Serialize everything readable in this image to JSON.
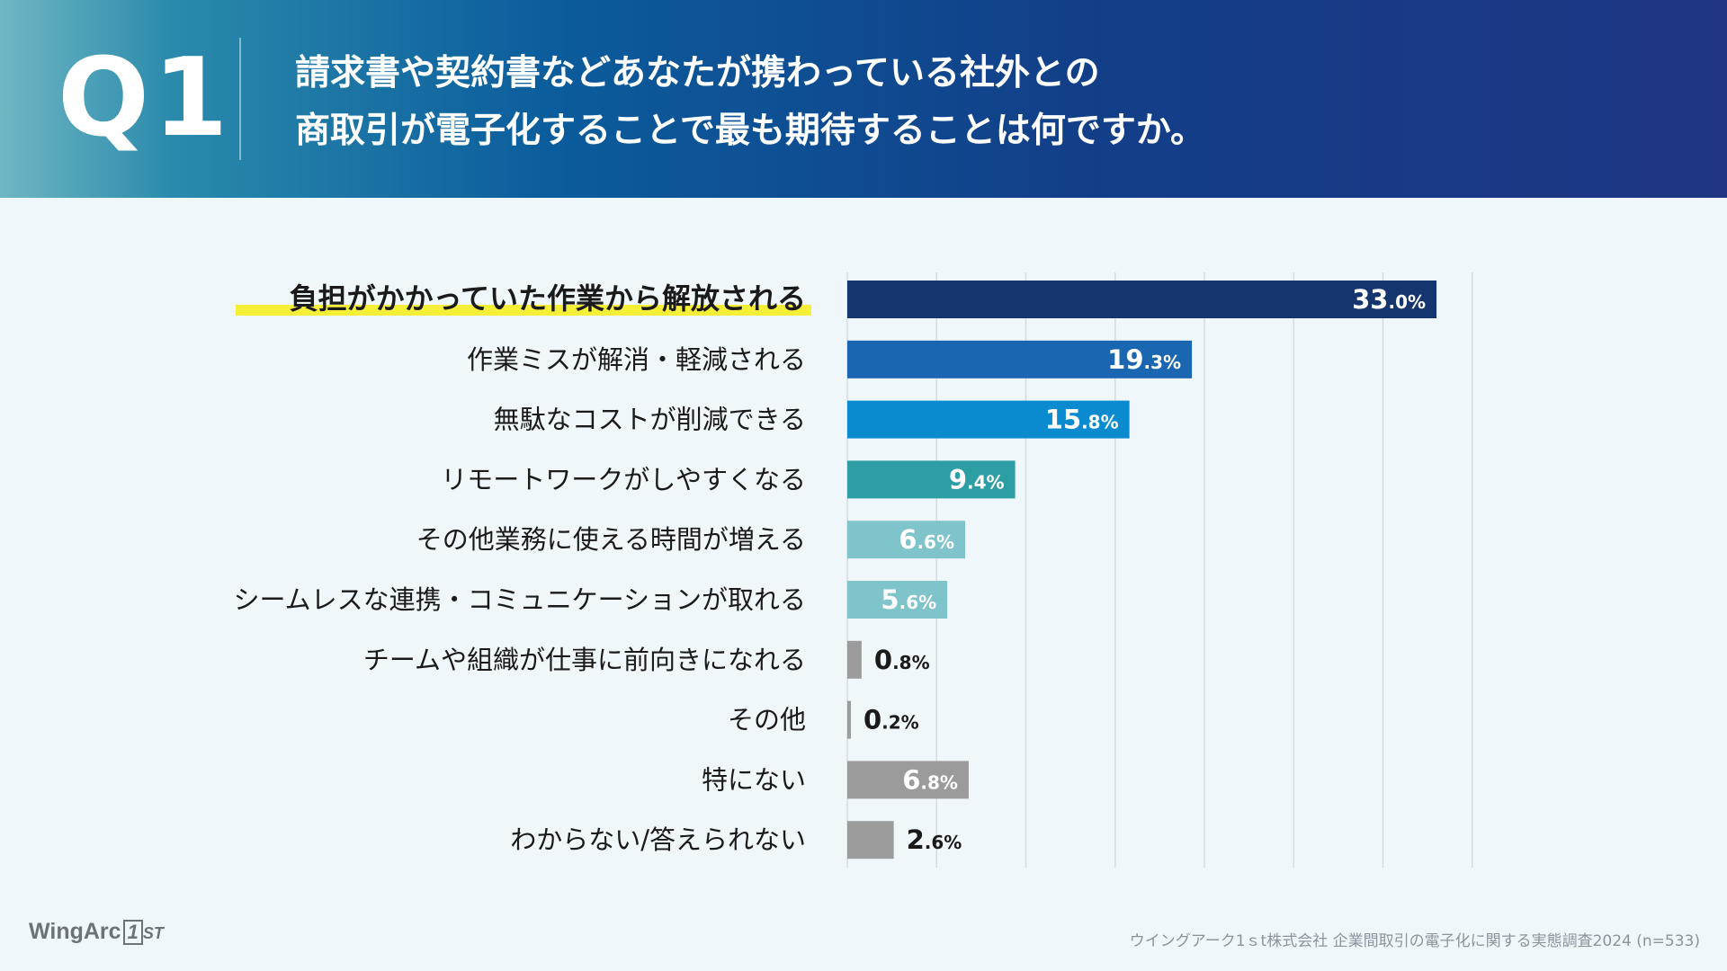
{
  "header": {
    "question_number": "Q1",
    "question_line1": "請求書や契約書などあなたが携わっている社外との",
    "question_line2": "商取引が電子化することで最も期待することは何ですか。"
  },
  "chart_data": {
    "type": "bar",
    "orientation": "horizontal",
    "categories": [
      "負担がかかっていた作業から解放される",
      "作業ミスが解消・軽減される",
      "無駄なコストが削減できる",
      "リモートワークがしやすくなる",
      "その他業務に使える時間が増える",
      "シームレスな連携・コミュニケーションが取れる",
      "チームや組織が仕事に前向きになれる",
      "その他",
      "特にない",
      "わからない/答えられない"
    ],
    "values": [
      33.0,
      19.3,
      15.8,
      9.4,
      6.6,
      5.6,
      0.8,
      0.2,
      6.8,
      2.6
    ],
    "value_labels_main": [
      "33",
      "19",
      "15",
      "9",
      "6",
      "5",
      "0",
      "0",
      "6",
      "2"
    ],
    "value_labels_decimal": [
      ".0%",
      ".3%",
      ".8%",
      ".4%",
      ".6%",
      ".6%",
      ".8%",
      ".2%",
      ".8%",
      ".6%"
    ],
    "colors": [
      "#15356f",
      "#1a66b0",
      "#0a8bd0",
      "#2e9ea5",
      "#7fc3cb",
      "#7fc3cb",
      "#9b9b9b",
      "#9b9b9b",
      "#9b9b9b",
      "#9b9b9b"
    ],
    "highlight_color": "#f6ef38",
    "xlim": [
      0,
      35
    ],
    "grid": true,
    "gridlines": [
      5,
      10,
      15,
      20,
      25,
      30,
      35
    ]
  },
  "footer": {
    "source": "ウイングアーク1ｓt株式会社 企業間取引の電子化に関する実態調査2024 (n=533)",
    "logo_main": "WingArc",
    "logo_one": "1",
    "logo_st": "ST"
  }
}
